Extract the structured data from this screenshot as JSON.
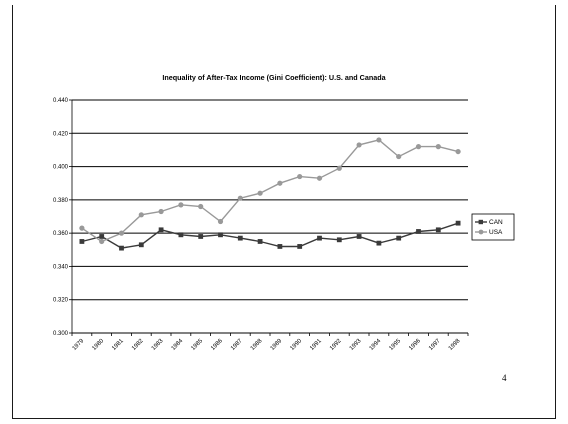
{
  "slide": {
    "page_number": "4"
  },
  "chart_data": {
    "type": "line",
    "title": "Inequality of After-Tax Income (Gini Coefficient):   U.S. and Canada",
    "xlabel": "",
    "ylabel": "",
    "x": [
      "1979",
      "1980",
      "1981",
      "1982",
      "1983",
      "1984",
      "1985",
      "1986",
      "1987",
      "1988",
      "1989",
      "1990",
      "1991",
      "1992",
      "1993",
      "1994",
      "1995",
      "1996",
      "1997",
      "1998"
    ],
    "ylim": [
      0.3,
      0.44
    ],
    "yticks": [
      "0.300",
      "0.320",
      "0.340",
      "0.360",
      "0.380",
      "0.400",
      "0.420",
      "0.440"
    ],
    "grid": true,
    "legend_position": "right",
    "series": [
      {
        "name": "CAN",
        "color": "#3a3a3a",
        "marker": "square",
        "values": [
          0.355,
          0.358,
          0.351,
          0.353,
          0.362,
          0.359,
          0.358,
          0.359,
          0.357,
          0.355,
          0.352,
          0.352,
          0.357,
          0.356,
          0.358,
          0.354,
          0.357,
          0.361,
          0.362,
          0.366
        ]
      },
      {
        "name": "USA",
        "color": "#999999",
        "marker": "circle",
        "values": [
          0.363,
          0.355,
          0.36,
          0.371,
          0.373,
          0.377,
          0.376,
          0.367,
          0.381,
          0.384,
          0.39,
          0.394,
          0.393,
          0.399,
          0.413,
          0.416,
          0.406,
          0.412,
          0.412,
          0.409
        ]
      }
    ]
  }
}
